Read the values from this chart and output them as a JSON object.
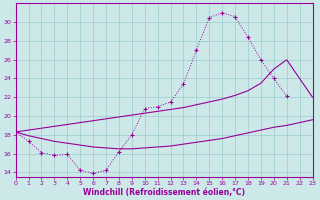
{
  "xlabel": "Windchill (Refroidissement éolien,°C)",
  "bg_color": "#cce8e8",
  "line_color": "#990099",
  "grid_color": "#99cccc",
  "line1_x": [
    0,
    1,
    2,
    3,
    4,
    5,
    6,
    7,
    8,
    9,
    10,
    11,
    12,
    13,
    14,
    15,
    16,
    17,
    18,
    19,
    20,
    21
  ],
  "line1_y": [
    18.3,
    17.3,
    16.1,
    15.8,
    15.9,
    14.2,
    13.9,
    14.2,
    16.2,
    18.0,
    20.8,
    21.0,
    21.5,
    23.4,
    27.0,
    30.5,
    31.0,
    30.6,
    28.4,
    26.0,
    24.0,
    22.1
  ],
  "line2_x": [
    0,
    1,
    2,
    3,
    4,
    5,
    6,
    7,
    8,
    9,
    10,
    11,
    12,
    13,
    14,
    15,
    16,
    17,
    18,
    19,
    20,
    21,
    22,
    23
  ],
  "line2_y": [
    18.3,
    18.5,
    18.7,
    18.9,
    19.1,
    19.3,
    19.5,
    19.7,
    19.9,
    20.1,
    20.3,
    20.5,
    20.7,
    20.9,
    21.2,
    21.5,
    21.8,
    22.2,
    22.7,
    23.5,
    25.0,
    26.0,
    24.0,
    22.0
  ],
  "line3_x": [
    0,
    1,
    2,
    3,
    4,
    5,
    6,
    7,
    8,
    9,
    10,
    11,
    12,
    13,
    14,
    15,
    16,
    17,
    18,
    19,
    20,
    21,
    22,
    23
  ],
  "line3_y": [
    18.3,
    17.9,
    17.6,
    17.3,
    17.1,
    16.9,
    16.7,
    16.6,
    16.5,
    16.5,
    16.6,
    16.7,
    16.8,
    17.0,
    17.2,
    17.4,
    17.6,
    17.9,
    18.2,
    18.5,
    18.8,
    19.0,
    19.3,
    19.6
  ],
  "ylim": [
    13.5,
    32
  ],
  "xlim": [
    0,
    23
  ],
  "yticks": [
    14,
    16,
    18,
    20,
    22,
    24,
    26,
    28,
    30
  ],
  "xticks": [
    0,
    1,
    2,
    3,
    4,
    5,
    6,
    7,
    8,
    9,
    10,
    11,
    12,
    13,
    14,
    15,
    16,
    17,
    18,
    19,
    20,
    21,
    22,
    23
  ]
}
